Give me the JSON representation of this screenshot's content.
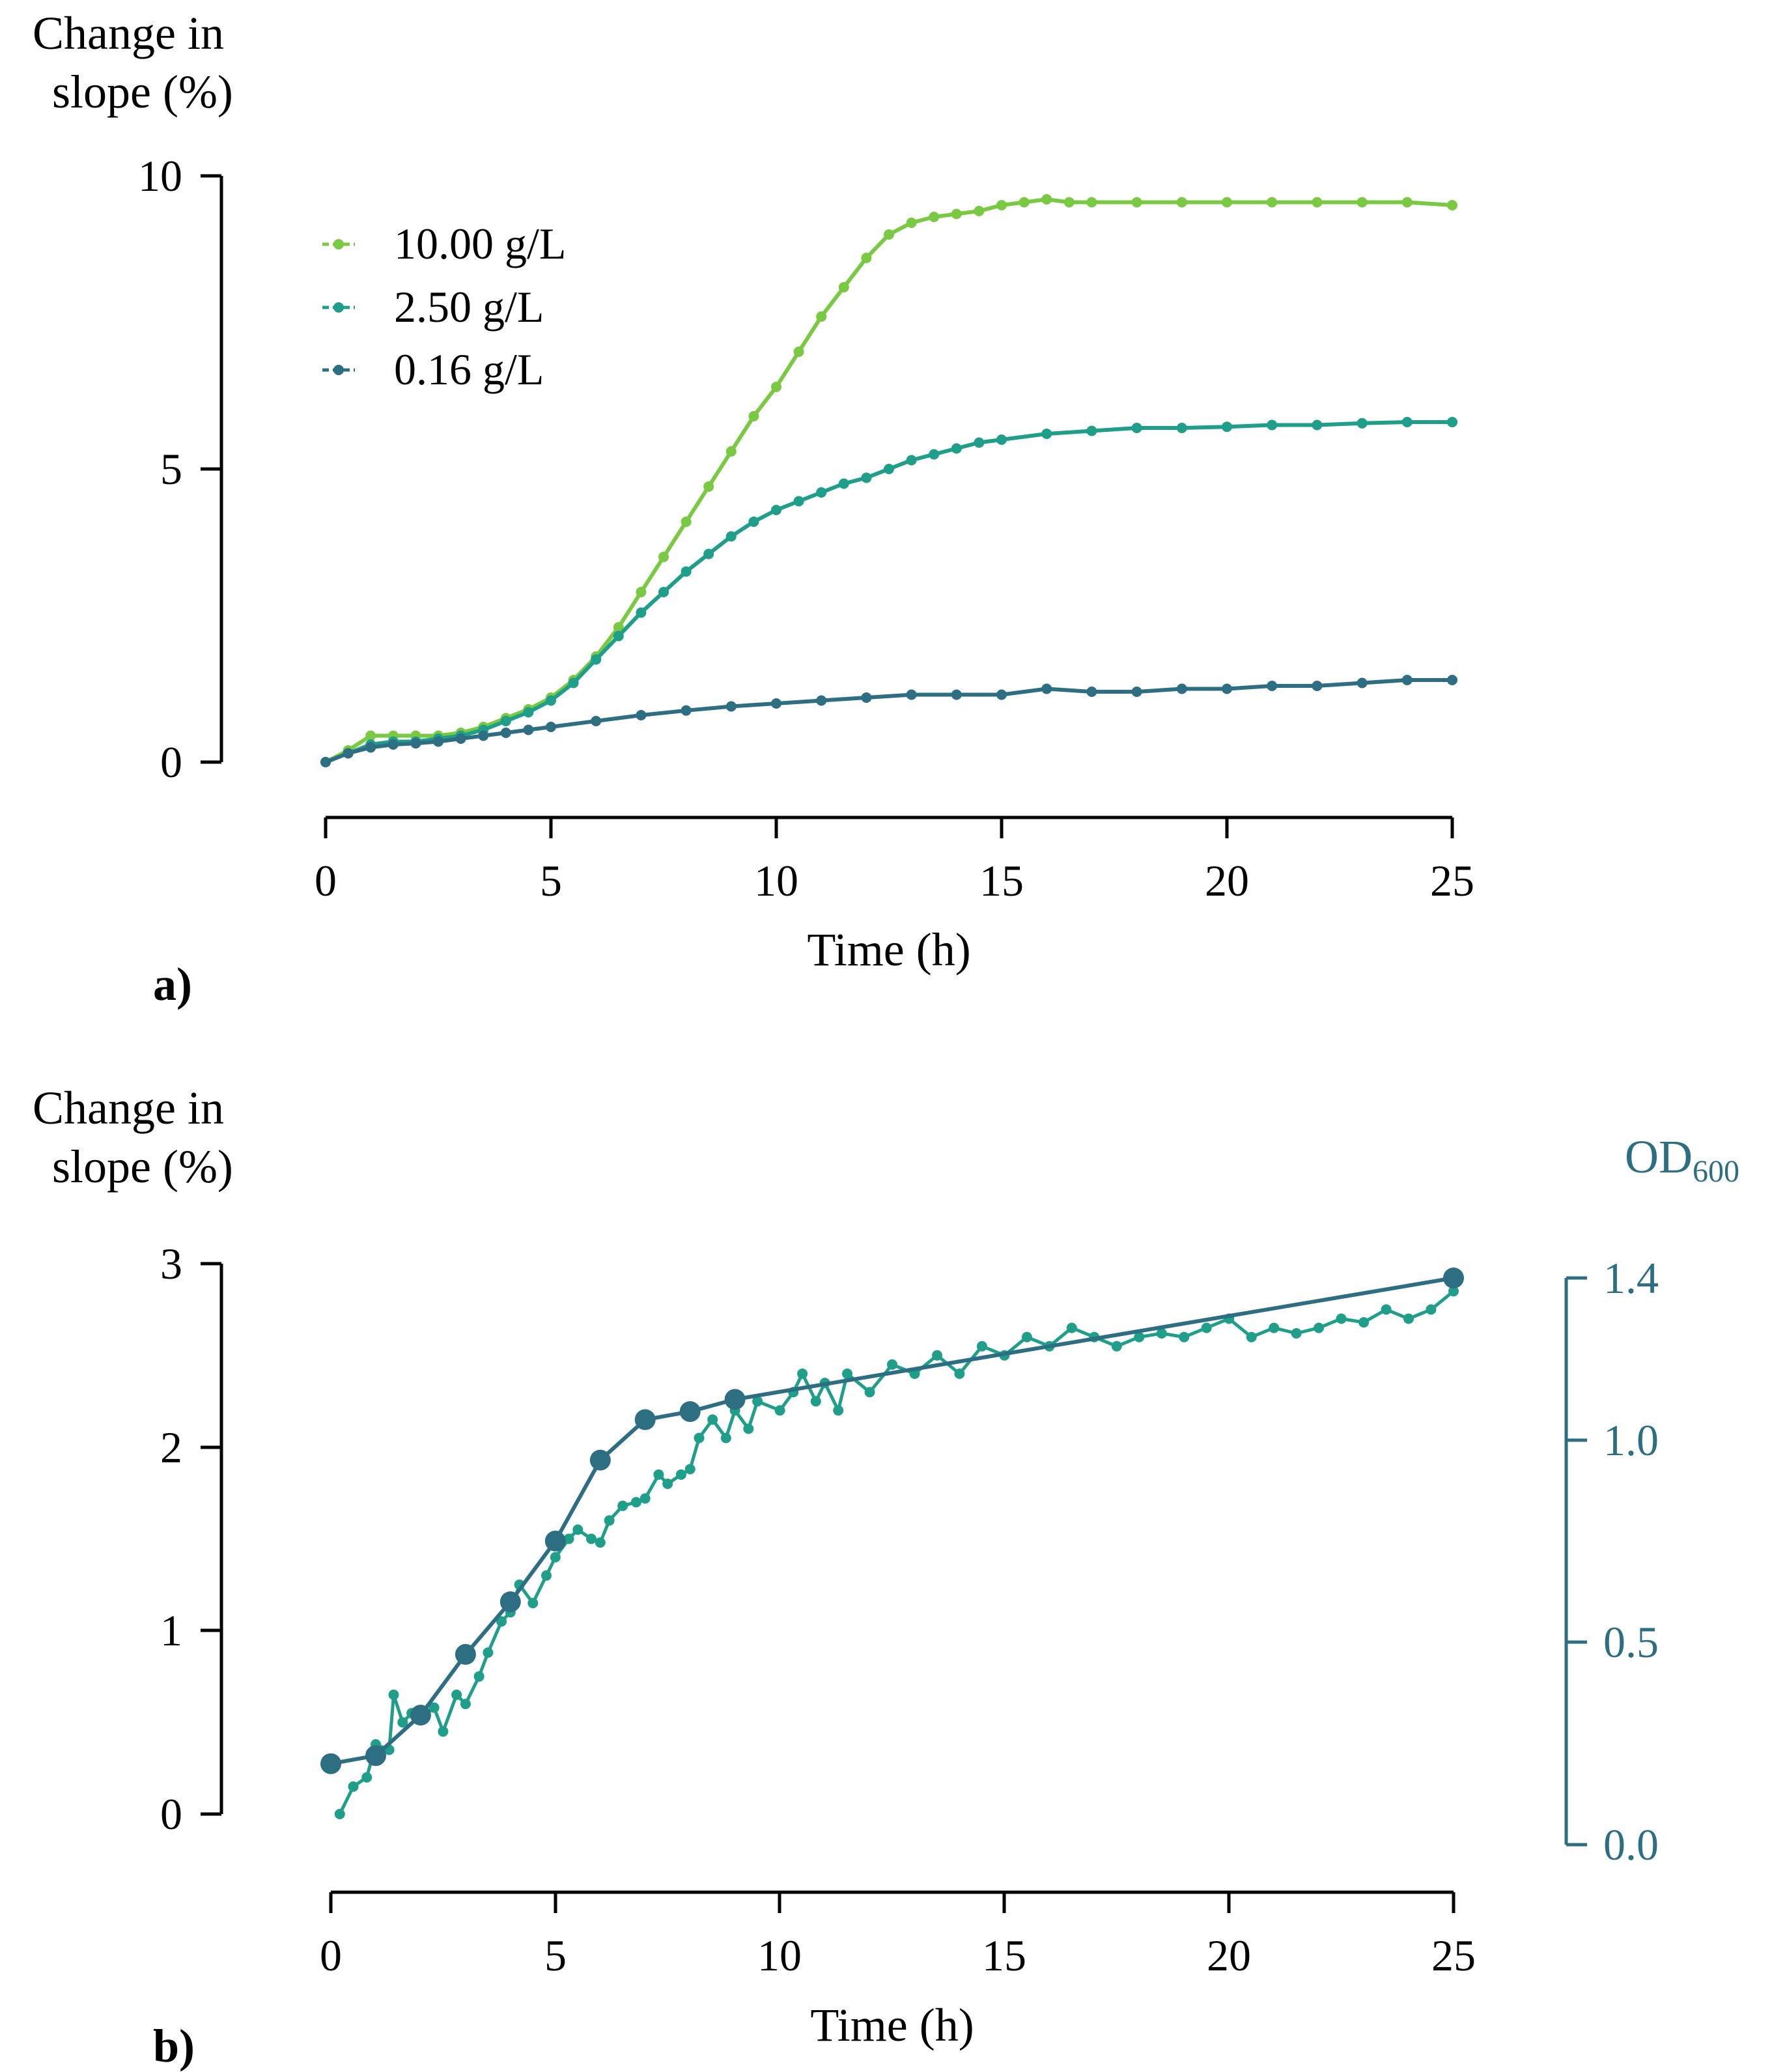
{
  "colors": {
    "series_10": "#7ac943",
    "series_2_5": "#1f9e89",
    "series_0_16": "#2d6e82",
    "change_b": "#1f9e89",
    "od": "#2d6e82",
    "axis": "#000000"
  },
  "chart_data": [
    {
      "id": "panel-a",
      "type": "line",
      "panel_label": "a)",
      "ylabel_lines": [
        "Change in",
        "slope (%)"
      ],
      "xlabel": "Time (h)",
      "xlim": [
        0,
        25
      ],
      "ylim": [
        0,
        10
      ],
      "xticks": [
        0,
        5,
        10,
        15,
        20,
        25
      ],
      "yticks": [
        0,
        5,
        10
      ],
      "legend_position": "top-left",
      "series": [
        {
          "name": "10.00 g/L",
          "color_key": "series_10",
          "points": [
            [
              0,
              0
            ],
            [
              0.5,
              0.2
            ],
            [
              1,
              0.45
            ],
            [
              1.5,
              0.45
            ],
            [
              2,
              0.45
            ],
            [
              2.5,
              0.45
            ],
            [
              3,
              0.5
            ],
            [
              3.5,
              0.6
            ],
            [
              4,
              0.75
            ],
            [
              4.5,
              0.9
            ],
            [
              5,
              1.1
            ],
            [
              5.5,
              1.4
            ],
            [
              6,
              1.8
            ],
            [
              6.5,
              2.3
            ],
            [
              7,
              2.9
            ],
            [
              7.5,
              3.5
            ],
            [
              8,
              4.1
            ],
            [
              8.5,
              4.7
            ],
            [
              9,
              5.3
            ],
            [
              9.5,
              5.9
            ],
            [
              10,
              6.4
            ],
            [
              10.5,
              7.0
            ],
            [
              11,
              7.6
            ],
            [
              11.5,
              8.1
            ],
            [
              12,
              8.6
            ],
            [
              12.5,
              9.0
            ],
            [
              13,
              9.2
            ],
            [
              13.5,
              9.3
            ],
            [
              14,
              9.35
            ],
            [
              14.5,
              9.4
            ],
            [
              15,
              9.5
            ],
            [
              15.5,
              9.55
            ],
            [
              16,
              9.6
            ],
            [
              16.5,
              9.55
            ],
            [
              17,
              9.55
            ],
            [
              18,
              9.55
            ],
            [
              19,
              9.55
            ],
            [
              20,
              9.55
            ],
            [
              21,
              9.55
            ],
            [
              22,
              9.55
            ],
            [
              23,
              9.55
            ],
            [
              24,
              9.55
            ],
            [
              25,
              9.5
            ]
          ]
        },
        {
          "name": "2.50 g/L",
          "color_key": "series_2_5",
          "points": [
            [
              0,
              0
            ],
            [
              0.5,
              0.15
            ],
            [
              1,
              0.3
            ],
            [
              1.5,
              0.35
            ],
            [
              2,
              0.35
            ],
            [
              2.5,
              0.4
            ],
            [
              3,
              0.45
            ],
            [
              3.5,
              0.55
            ],
            [
              4,
              0.7
            ],
            [
              4.5,
              0.85
            ],
            [
              5,
              1.05
            ],
            [
              5.5,
              1.35
            ],
            [
              6,
              1.75
            ],
            [
              6.5,
              2.15
            ],
            [
              7,
              2.55
            ],
            [
              7.5,
              2.9
            ],
            [
              8,
              3.25
            ],
            [
              8.5,
              3.55
            ],
            [
              9,
              3.85
            ],
            [
              9.5,
              4.1
            ],
            [
              10,
              4.3
            ],
            [
              10.5,
              4.45
            ],
            [
              11,
              4.6
            ],
            [
              11.5,
              4.75
            ],
            [
              12,
              4.85
            ],
            [
              12.5,
              5.0
            ],
            [
              13,
              5.15
            ],
            [
              13.5,
              5.25
            ],
            [
              14,
              5.35
            ],
            [
              14.5,
              5.45
            ],
            [
              15,
              5.5
            ],
            [
              16,
              5.6
            ],
            [
              17,
              5.65
            ],
            [
              18,
              5.7
            ],
            [
              19,
              5.7
            ],
            [
              20,
              5.72
            ],
            [
              21,
              5.75
            ],
            [
              22,
              5.75
            ],
            [
              23,
              5.78
            ],
            [
              24,
              5.8
            ],
            [
              25,
              5.8
            ]
          ]
        },
        {
          "name": "0.16 g/L",
          "color_key": "series_0_16",
          "points": [
            [
              0,
              0
            ],
            [
              0.5,
              0.15
            ],
            [
              1,
              0.25
            ],
            [
              1.5,
              0.3
            ],
            [
              2,
              0.32
            ],
            [
              2.5,
              0.35
            ],
            [
              3,
              0.4
            ],
            [
              3.5,
              0.45
            ],
            [
              4,
              0.5
            ],
            [
              4.5,
              0.55
            ],
            [
              5,
              0.6
            ],
            [
              6,
              0.7
            ],
            [
              7,
              0.8
            ],
            [
              8,
              0.88
            ],
            [
              9,
              0.95
            ],
            [
              10,
              1.0
            ],
            [
              11,
              1.05
            ],
            [
              12,
              1.1
            ],
            [
              13,
              1.15
            ],
            [
              14,
              1.15
            ],
            [
              15,
              1.15
            ],
            [
              16,
              1.25
            ],
            [
              17,
              1.2
            ],
            [
              18,
              1.2
            ],
            [
              19,
              1.25
            ],
            [
              20,
              1.25
            ],
            [
              21,
              1.3
            ],
            [
              22,
              1.3
            ],
            [
              23,
              1.35
            ],
            [
              24,
              1.4
            ],
            [
              25,
              1.4
            ]
          ]
        }
      ]
    },
    {
      "id": "panel-b",
      "type": "line",
      "panel_label": "b)",
      "ylabel_lines": [
        "Change in",
        "slope (%)"
      ],
      "y2label": "OD",
      "y2label_sub": "600",
      "xlabel": "Time (h)",
      "xlim": [
        0,
        25
      ],
      "ylim": [
        0,
        3
      ],
      "y2lim": [
        0,
        1.4
      ],
      "xticks": [
        0,
        5,
        10,
        15,
        20,
        25
      ],
      "yticks": [
        0,
        1,
        2,
        3
      ],
      "y2ticks": [
        "0.0",
        "0.5",
        "1.0",
        "1.4"
      ],
      "series": [
        {
          "name": "Change in slope",
          "axis": "left",
          "color_key": "change_b",
          "points": [
            [
              0.2,
              0.0
            ],
            [
              0.5,
              0.15
            ],
            [
              0.8,
              0.2
            ],
            [
              1.0,
              0.38
            ],
            [
              1.3,
              0.35
            ],
            [
              1.4,
              0.65
            ],
            [
              1.6,
              0.5
            ],
            [
              1.8,
              0.55
            ],
            [
              2.0,
              0.52
            ],
            [
              2.3,
              0.58
            ],
            [
              2.5,
              0.45
            ],
            [
              2.8,
              0.65
            ],
            [
              3.0,
              0.6
            ],
            [
              3.3,
              0.75
            ],
            [
              3.5,
              0.88
            ],
            [
              3.8,
              1.05
            ],
            [
              4.0,
              1.1
            ],
            [
              4.2,
              1.25
            ],
            [
              4.5,
              1.15
            ],
            [
              4.8,
              1.3
            ],
            [
              5.0,
              1.4
            ],
            [
              5.3,
              1.5
            ],
            [
              5.5,
              1.55
            ],
            [
              5.8,
              1.5
            ],
            [
              6.0,
              1.48
            ],
            [
              6.2,
              1.6
            ],
            [
              6.5,
              1.68
            ],
            [
              6.8,
              1.7
            ],
            [
              7.0,
              1.72
            ],
            [
              7.3,
              1.85
            ],
            [
              7.5,
              1.8
            ],
            [
              7.8,
              1.85
            ],
            [
              8.0,
              1.88
            ],
            [
              8.2,
              2.05
            ],
            [
              8.5,
              2.15
            ],
            [
              8.8,
              2.05
            ],
            [
              9.0,
              2.2
            ],
            [
              9.3,
              2.1
            ],
            [
              9.5,
              2.25
            ],
            [
              10.0,
              2.2
            ],
            [
              10.3,
              2.3
            ],
            [
              10.5,
              2.4
            ],
            [
              10.8,
              2.25
            ],
            [
              11.0,
              2.35
            ],
            [
              11.3,
              2.2
            ],
            [
              11.5,
              2.4
            ],
            [
              12.0,
              2.3
            ],
            [
              12.5,
              2.45
            ],
            [
              13.0,
              2.4
            ],
            [
              13.5,
              2.5
            ],
            [
              14.0,
              2.4
            ],
            [
              14.5,
              2.55
            ],
            [
              15.0,
              2.5
            ],
            [
              15.5,
              2.6
            ],
            [
              16.0,
              2.55
            ],
            [
              16.5,
              2.65
            ],
            [
              17.0,
              2.6
            ],
            [
              17.5,
              2.55
            ],
            [
              18.0,
              2.6
            ],
            [
              18.5,
              2.62
            ],
            [
              19.0,
              2.6
            ],
            [
              19.5,
              2.65
            ],
            [
              20.0,
              2.7
            ],
            [
              20.5,
              2.6
            ],
            [
              21.0,
              2.65
            ],
            [
              21.5,
              2.62
            ],
            [
              22.0,
              2.65
            ],
            [
              22.5,
              2.7
            ],
            [
              23.0,
              2.68
            ],
            [
              23.5,
              2.75
            ],
            [
              24.0,
              2.7
            ],
            [
              24.5,
              2.75
            ],
            [
              25.0,
              2.85
            ]
          ]
        },
        {
          "name": "OD600",
          "axis": "right",
          "color_key": "od",
          "points": [
            [
              0,
              0.2
            ],
            [
              1,
              0.22
            ],
            [
              2,
              0.32
            ],
            [
              3,
              0.47
            ],
            [
              4,
              0.6
            ],
            [
              5,
              0.75
            ],
            [
              6,
              0.95
            ],
            [
              7,
              1.05
            ],
            [
              8,
              1.07
            ],
            [
              9,
              1.1
            ],
            [
              25,
              1.4
            ]
          ]
        }
      ]
    }
  ]
}
